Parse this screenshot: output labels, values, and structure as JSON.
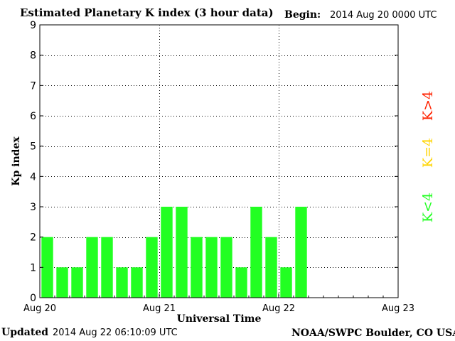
{
  "header": {
    "title": "Estimated Planetary K index (3 hour data)",
    "begin_label": "Begin:",
    "begin_value": "2014 Aug 20 0000 UTC"
  },
  "footer": {
    "updated_label": "Updated",
    "updated_value": "2014 Aug 22 06:10:09 UTC",
    "credit": "NOAA/SWPC Boulder, CO USA"
  },
  "legend": {
    "k_low": "K<4",
    "k_eq": "K=4",
    "k_high": "K>4",
    "color_low": "#22ff22",
    "color_eq": "#ffd400",
    "color_high": "#ff2200"
  },
  "chart_data": {
    "type": "bar",
    "xlabel": "Universal Time",
    "ylabel": "Kp index",
    "ylim": [
      0,
      9
    ],
    "yticks": [
      0,
      1,
      2,
      3,
      4,
      5,
      6,
      7,
      8,
      9
    ],
    "x_tick_labels": [
      "Aug 20",
      "Aug 21",
      "Aug 22",
      "Aug 23"
    ],
    "bins_per_day": 8,
    "grid": "dotted",
    "values": [
      2,
      1,
      1,
      2,
      2,
      1,
      1,
      2,
      3,
      3,
      2,
      2,
      2,
      1,
      3,
      2,
      1,
      3
    ],
    "bar_color": "#22ff22"
  }
}
